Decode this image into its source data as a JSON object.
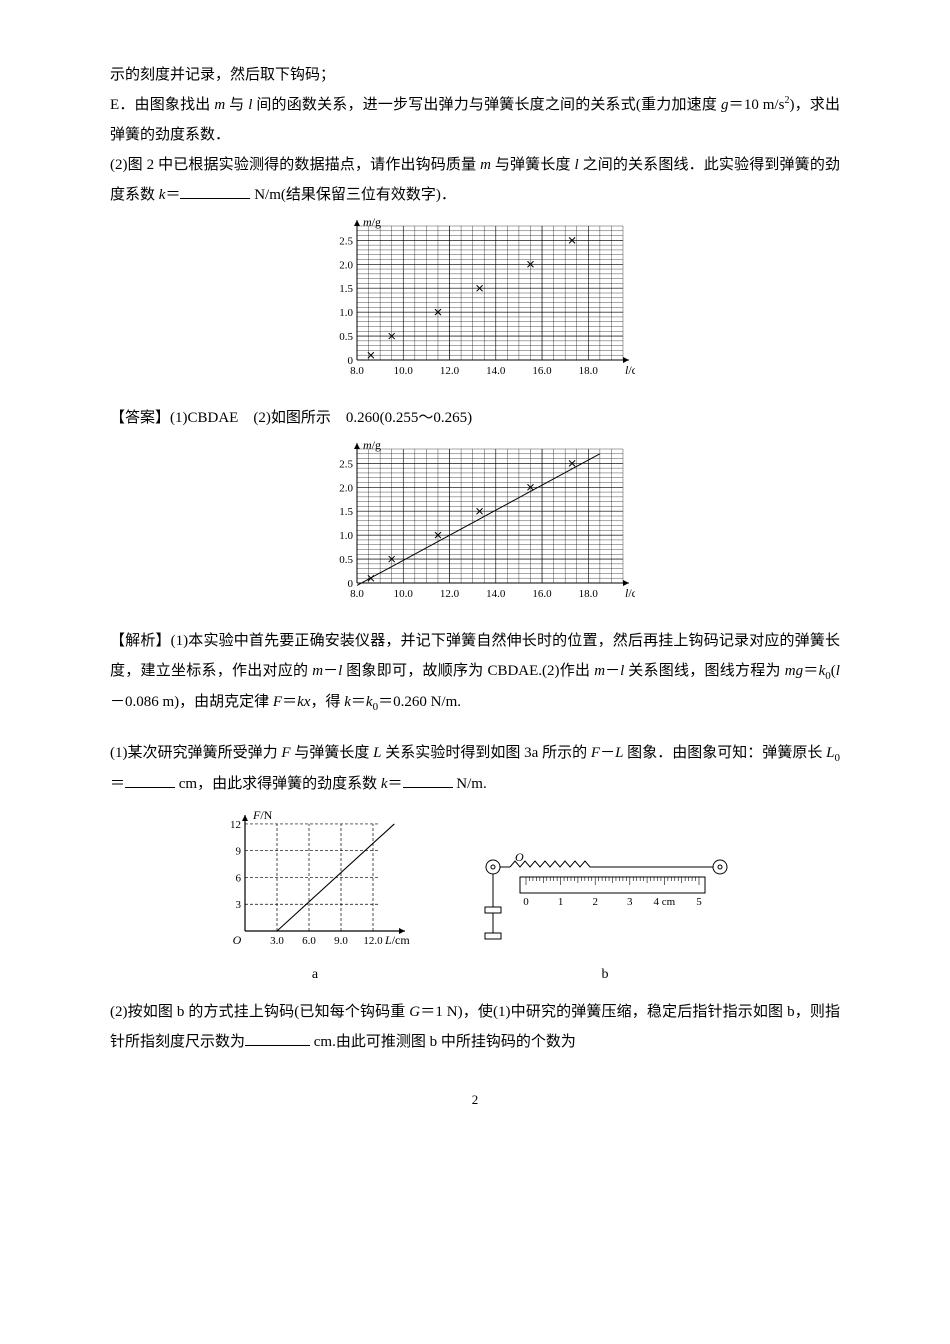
{
  "para1": "示的刻度并记录，然后取下钩码；",
  "para2_a": "E．由图象找出 ",
  "para2_b": " 与 ",
  "para2_c": " 间的函数关系，进一步写出弹力与弹簧长度之间的关系式(重力加速度 ",
  "para2_d": "＝10 m/s",
  "para2_e": ")，求出弹簧的劲度系数．",
  "para3_a": "(2)图 2 中已根据实验测得的数据描点，请作出钩码质量 ",
  "para3_b": " 与弹簧长度 ",
  "para3_c": " 之间的关系图线．此实验得到弹簧的劲度系数 ",
  "para3_d": "＝",
  "para3_e": " N/m(结果保留三位有效数字)．",
  "ans_a": "【答案】(1)CBDAE　(2)如图所示　0.260(0.255～0.265)",
  "exp_a": "【解析】(1)本实验中首先要正确安装仪器，并记下弹簧自然伸长时的位置，然后再挂上钩码记录对应的弹簧长度，建立坐标系，作出对应的 ",
  "exp_b": "－",
  "exp_c": " 图象即可，故顺序为 CBDAE.(2)作出 ",
  "exp_d": "－",
  "exp_e": " 关系图线，图线方程为 ",
  "exp_f": "＝",
  "exp_g": "(",
  "exp_h": "－0.086 m)，由胡克定律 ",
  "exp_i": "＝",
  "exp_j": "，得 ",
  "exp_k": "＝",
  "exp_l": "＝0.260 N/m.",
  "q2_a": "(1)某次研究弹簧所受弹力 ",
  "q2_b": " 与弹簧长度 ",
  "q2_c": " 关系实验时得到如图 3a 所示的 ",
  "q2_d": "－",
  "q2_e": " 图象．由图象可知：弹簧原长 ",
  "q2_f": "＝",
  "q2_g": " cm，由此求得弹簧的劲度系数 ",
  "q2_h": "＝",
  "q2_i": " N/m.",
  "q3_a": "(2)按如图 b 的方式挂上钩码(已知每个钩码重 ",
  "q3_b": "＝1 N)，使(1)中研究的弹簧压缩，稳定后指针指示如图 b，则指针所指刻度尺示数为",
  "q3_c": " cm.由此可推测图 b 中所挂钩码的个数为",
  "page_num": "2",
  "chart1": {
    "ylabel": "m/g",
    "xlabel": "l/cm",
    "yticks": [
      "0",
      "0.5",
      "1.0",
      "1.5",
      "2.0",
      "2.5"
    ],
    "xticks": [
      "8.0",
      "10.0",
      "12.0",
      "14.0",
      "16.0",
      "18.0"
    ],
    "points": [
      [
        8.6,
        0.1
      ],
      [
        9.5,
        0.5
      ],
      [
        11.5,
        1.0
      ],
      [
        13.3,
        1.5
      ],
      [
        15.5,
        2.0
      ],
      [
        17.3,
        2.5
      ]
    ],
    "draw_line": false,
    "grid_color": "#000",
    "bg": "#fff"
  },
  "chart2": {
    "ylabel": "m/g",
    "xlabel": "l/cm",
    "yticks": [
      "0",
      "0.5",
      "1.0",
      "1.5",
      "2.0",
      "2.5"
    ],
    "xticks": [
      "8.0",
      "10.0",
      "12.0",
      "14.0",
      "16.0",
      "18.0"
    ],
    "points": [
      [
        8.6,
        0.1
      ],
      [
        9.5,
        0.5
      ],
      [
        11.5,
        1.0
      ],
      [
        13.3,
        1.5
      ],
      [
        15.5,
        2.0
      ],
      [
        17.3,
        2.5
      ]
    ],
    "draw_line": true,
    "line": [
      [
        8.0,
        -0.05
      ],
      [
        18.5,
        2.7
      ]
    ],
    "grid_color": "#000",
    "bg": "#fff"
  },
  "chart3": {
    "ylabel": "F/N",
    "xlabel": "L/cm",
    "yticks": [
      "3",
      "6",
      "9",
      "12"
    ],
    "xticks": [
      "3.0",
      "6.0",
      "9.0",
      "12.0"
    ],
    "origin": "O",
    "line": [
      [
        3.0,
        0
      ],
      [
        14.0,
        12
      ]
    ],
    "grid_color": "#000"
  },
  "figb": {
    "origin": "O",
    "ticks": [
      "0",
      "1",
      "2",
      "3",
      "4 cm",
      "5"
    ]
  },
  "labels": {
    "a": "a",
    "b": "b"
  }
}
